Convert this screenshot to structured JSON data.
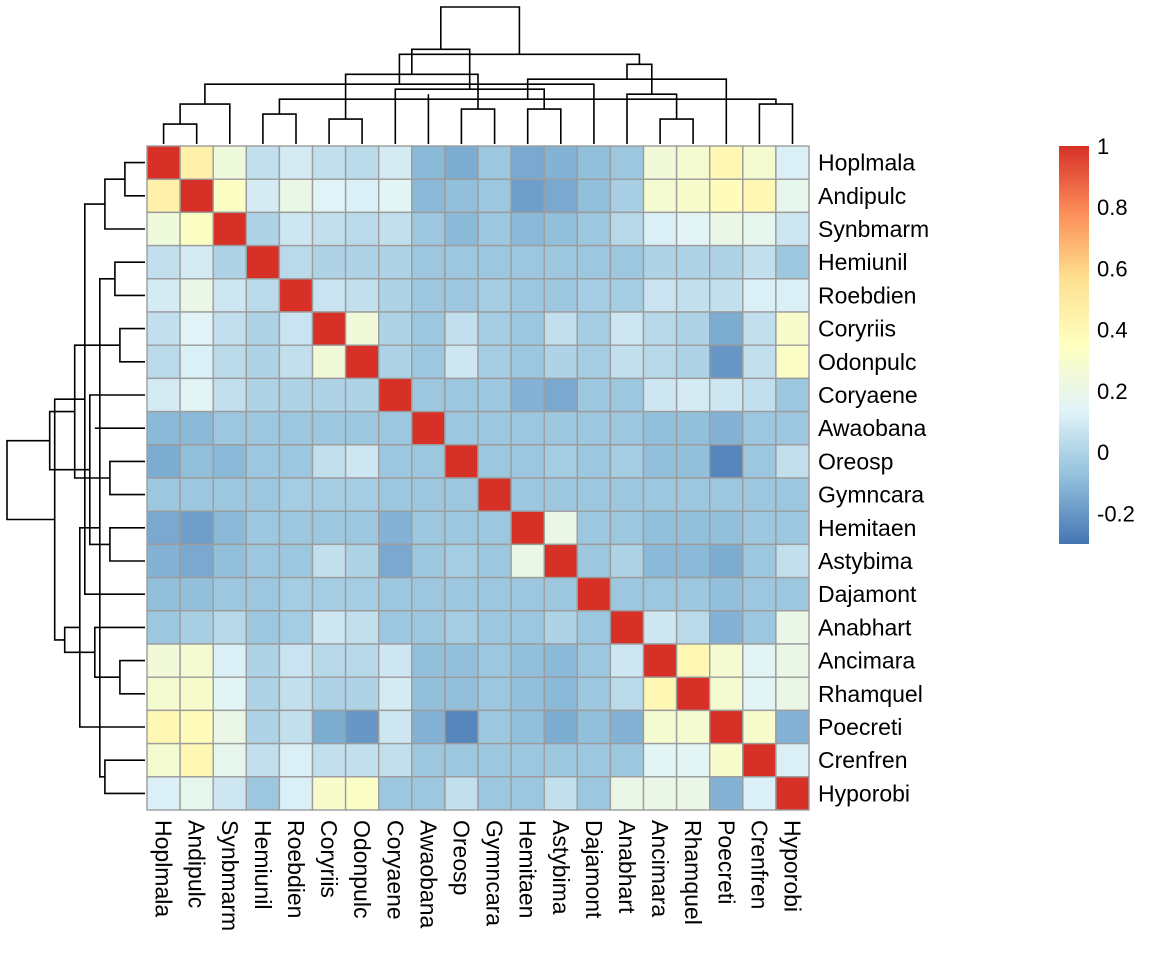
{
  "chart_data": {
    "type": "heatmap",
    "title": "",
    "xlabel": "",
    "ylabel": "",
    "labels": [
      "Hoplmala",
      "Andipulc",
      "Synbmarm",
      "Hemiunil",
      "Roebdien",
      "Coryriis",
      "Odonpulc",
      "Coryaene",
      "Awaobana",
      "Oreosp",
      "Gymncara",
      "Hemitaen",
      "Astybima",
      "Dajamont",
      "Anabhart",
      "Ancimara",
      "Rhamquel",
      "Poecreti",
      "Crenfren",
      "Hyporobi"
    ],
    "matrix": [
      [
        1.0,
        0.45,
        0.24,
        0.05,
        0.1,
        0.05,
        0.03,
        0.1,
        -0.1,
        -0.14,
        -0.05,
        -0.15,
        -0.12,
        -0.08,
        -0.05,
        0.25,
        0.28,
        0.4,
        0.28,
        0.12
      ],
      [
        0.45,
        1.0,
        0.33,
        0.1,
        0.2,
        0.14,
        0.12,
        0.15,
        -0.1,
        -0.08,
        -0.05,
        -0.18,
        -0.15,
        -0.08,
        -0.02,
        0.28,
        0.3,
        0.37,
        0.4,
        0.18
      ],
      [
        0.24,
        0.33,
        1.0,
        0.0,
        0.08,
        0.05,
        0.03,
        0.05,
        -0.05,
        -0.1,
        -0.05,
        -0.1,
        -0.08,
        -0.05,
        0.02,
        0.12,
        0.15,
        0.2,
        0.18,
        0.08
      ],
      [
        0.05,
        0.1,
        0.0,
        1.0,
        0.03,
        0.0,
        0.0,
        0.0,
        -0.05,
        -0.05,
        -0.05,
        -0.05,
        -0.05,
        -0.05,
        -0.05,
        0.0,
        0.0,
        0.0,
        0.05,
        -0.05
      ],
      [
        0.1,
        0.2,
        0.08,
        0.03,
        1.0,
        0.07,
        0.05,
        0.0,
        -0.05,
        -0.05,
        -0.03,
        -0.05,
        -0.05,
        -0.03,
        -0.03,
        0.07,
        0.05,
        0.05,
        0.12,
        0.12
      ],
      [
        0.05,
        0.14,
        0.05,
        0.0,
        0.07,
        1.0,
        0.25,
        0.0,
        -0.05,
        0.05,
        -0.03,
        -0.05,
        0.05,
        -0.03,
        0.08,
        0.02,
        0.0,
        -0.14,
        0.05,
        0.3
      ],
      [
        0.03,
        0.12,
        0.03,
        0.0,
        0.05,
        0.25,
        1.0,
        0.0,
        -0.05,
        0.08,
        -0.03,
        -0.05,
        0.0,
        -0.03,
        0.05,
        0.02,
        0.0,
        -0.2,
        0.05,
        0.32
      ],
      [
        0.1,
        0.15,
        0.05,
        0.0,
        0.0,
        0.0,
        0.0,
        1.0,
        -0.05,
        -0.05,
        -0.05,
        -0.12,
        -0.15,
        -0.05,
        -0.05,
        0.08,
        0.1,
        0.08,
        0.05,
        -0.05
      ],
      [
        -0.1,
        -0.1,
        -0.05,
        -0.05,
        -0.05,
        -0.05,
        -0.05,
        -0.05,
        1.0,
        -0.05,
        -0.05,
        -0.05,
        -0.05,
        -0.05,
        -0.05,
        -0.08,
        -0.08,
        -0.12,
        -0.05,
        -0.05
      ],
      [
        -0.14,
        -0.08,
        -0.1,
        -0.05,
        -0.05,
        0.05,
        0.08,
        -0.05,
        -0.05,
        1.0,
        -0.05,
        -0.05,
        -0.03,
        -0.05,
        -0.03,
        -0.08,
        -0.08,
        -0.25,
        -0.05,
        0.05
      ],
      [
        -0.05,
        -0.05,
        -0.05,
        -0.05,
        -0.03,
        -0.03,
        -0.03,
        -0.05,
        -0.05,
        -0.05,
        1.0,
        -0.05,
        -0.05,
        -0.05,
        -0.05,
        -0.05,
        -0.05,
        -0.05,
        -0.05,
        -0.05
      ],
      [
        -0.15,
        -0.18,
        -0.1,
        -0.05,
        -0.05,
        -0.05,
        -0.05,
        -0.12,
        -0.05,
        -0.05,
        -0.05,
        1.0,
        0.2,
        -0.05,
        -0.05,
        -0.08,
        -0.08,
        -0.08,
        -0.05,
        -0.05
      ],
      [
        -0.12,
        -0.15,
        -0.08,
        -0.05,
        -0.05,
        0.05,
        0.0,
        -0.15,
        -0.05,
        -0.03,
        -0.05,
        0.2,
        1.0,
        -0.05,
        0.0,
        -0.1,
        -0.1,
        -0.14,
        -0.05,
        0.05
      ],
      [
        -0.08,
        -0.08,
        -0.05,
        -0.05,
        -0.03,
        -0.03,
        -0.03,
        -0.05,
        -0.05,
        -0.05,
        -0.05,
        -0.05,
        -0.05,
        1.0,
        -0.05,
        -0.05,
        -0.05,
        -0.08,
        -0.05,
        -0.05
      ],
      [
        -0.05,
        -0.02,
        0.02,
        -0.05,
        -0.03,
        0.08,
        0.05,
        -0.05,
        -0.05,
        -0.03,
        -0.05,
        -0.05,
        0.0,
        -0.05,
        1.0,
        0.08,
        0.03,
        -0.12,
        -0.05,
        0.2
      ],
      [
        0.25,
        0.28,
        0.12,
        0.0,
        0.07,
        0.02,
        0.02,
        0.08,
        -0.08,
        -0.08,
        -0.05,
        -0.08,
        -0.1,
        -0.05,
        0.08,
        1.0,
        0.4,
        0.28,
        0.15,
        0.2
      ],
      [
        0.28,
        0.3,
        0.15,
        0.0,
        0.05,
        0.0,
        0.0,
        0.1,
        -0.08,
        -0.08,
        -0.05,
        -0.08,
        -0.1,
        -0.05,
        0.03,
        0.4,
        1.0,
        0.28,
        0.15,
        0.2
      ],
      [
        0.4,
        0.37,
        0.2,
        0.0,
        0.05,
        -0.14,
        -0.2,
        0.08,
        -0.12,
        -0.25,
        -0.05,
        -0.08,
        -0.14,
        -0.08,
        -0.12,
        0.28,
        0.28,
        1.0,
        0.3,
        -0.12
      ],
      [
        0.28,
        0.4,
        0.18,
        0.05,
        0.12,
        0.05,
        0.05,
        0.05,
        -0.05,
        -0.05,
        -0.05,
        -0.05,
        -0.05,
        -0.05,
        -0.05,
        0.15,
        0.15,
        0.3,
        1.0,
        0.12
      ],
      [
        0.12,
        0.18,
        0.08,
        -0.05,
        0.12,
        0.3,
        0.32,
        -0.05,
        -0.05,
        0.05,
        -0.05,
        -0.05,
        0.05,
        -0.05,
        0.2,
        0.2,
        0.2,
        -0.12,
        0.12,
        1.0
      ]
    ],
    "color_scale": {
      "min": -0.3,
      "max": 1.0,
      "colors": [
        "#4575b4",
        "#91bfdb",
        "#e0f3f8",
        "#ffffbf",
        "#fee090",
        "#fc8d59",
        "#d73027"
      ],
      "legend_ticks": [
        "1",
        "0.8",
        "0.6",
        "0.4",
        "0.2",
        "0",
        "-0.2"
      ],
      "legend_tick_values": [
        1.0,
        0.8,
        0.6,
        0.4,
        0.2,
        0.0,
        -0.2
      ]
    },
    "dendrogram": {
      "order_note": "",
      "merges": [
        [
          0,
          1,
          0.08
        ],
        [
          5,
          6,
          0.1
        ],
        [
          15,
          16,
          0.1
        ],
        [
          3,
          4,
          0.12
        ],
        [
          11,
          12,
          0.14
        ],
        [
          9,
          10,
          0.14
        ],
        [
          18,
          19,
          0.16
        ],
        [
          20,
          2,
          0.16
        ],
        [
          23,
          26,
          0.18
        ],
        [
          8,
          29,
          0.2
        ],
        [
          14,
          22,
          0.2
        ],
        [
          24,
          7,
          0.22
        ],
        [
          13,
          27,
          0.24
        ],
        [
          17,
          28,
          0.26
        ],
        [
          25,
          21,
          0.28
        ],
        [
          30,
          33,
          0.32
        ],
        [
          35,
          32,
          0.36
        ],
        [
          34,
          31,
          0.38
        ],
        [
          36,
          37,
          0.55
        ]
      ]
    },
    "grid": false,
    "legend_position": "right"
  }
}
